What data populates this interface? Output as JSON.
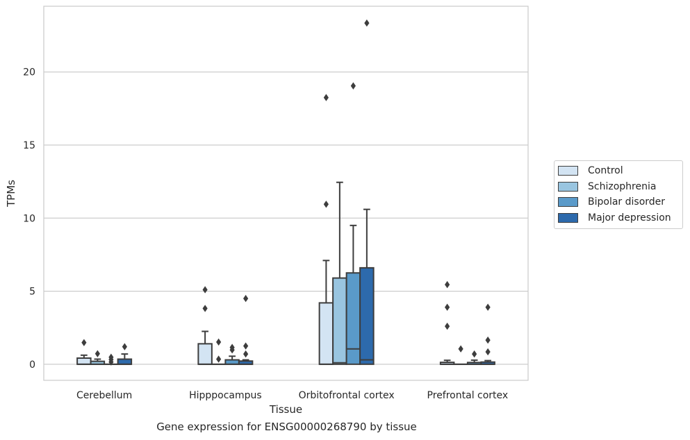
{
  "chart_data": {
    "type": "box",
    "caption": "Gene expression for ENSG00000268790 by tissue",
    "xlabel": "Tissue",
    "ylabel": "TPMs",
    "ylim": [
      -1.1,
      24.5
    ],
    "yticks": [
      0,
      5,
      10,
      15,
      20
    ],
    "grid": "horizontal",
    "legend_position": "right",
    "categories": [
      "Cerebellum",
      "Hipppocampus",
      "Orbitofrontal cortex",
      "Prefrontal cortex"
    ],
    "series": [
      {
        "name": "Control",
        "color": "#d3e4f3",
        "boxes": [
          {
            "q1": 0.0,
            "median": 0.0,
            "q3": 0.42,
            "whisker_low": 0.0,
            "whisker_high": 0.62,
            "outliers": [
              1.48
            ]
          },
          {
            "q1": 0.0,
            "median": 0.0,
            "q3": 1.4,
            "whisker_low": 0.0,
            "whisker_high": 2.25,
            "outliers": [
              3.82,
              5.1
            ]
          },
          {
            "q1": 0.0,
            "median": 0.0,
            "q3": 4.2,
            "whisker_low": 0.0,
            "whisker_high": 7.1,
            "outliers": [
              10.95,
              18.25
            ]
          },
          {
            "q1": 0.0,
            "median": 0.0,
            "q3": 0.13,
            "whisker_low": 0.0,
            "whisker_high": 0.27,
            "outliers": [
              2.6,
              3.9,
              5.45
            ]
          }
        ]
      },
      {
        "name": "Schizophrenia",
        "color": "#99c5e0",
        "boxes": [
          {
            "q1": 0.0,
            "median": 0.0,
            "q3": 0.2,
            "whisker_low": 0.0,
            "whisker_high": 0.35,
            "outliers": [
              0.72
            ]
          },
          {
            "q1": 0.0,
            "median": 0.0,
            "q3": 0.0,
            "whisker_low": 0.0,
            "whisker_high": 0.0,
            "outliers": [
              0.35,
              1.52
            ]
          },
          {
            "q1": 0.0,
            "median": 0.1,
            "q3": 5.9,
            "whisker_low": 0.0,
            "whisker_high": 12.45,
            "outliers": []
          },
          {
            "q1": 0.0,
            "median": 0.0,
            "q3": 0.0,
            "whisker_low": 0.0,
            "whisker_high": 0.0,
            "outliers": [
              1.05
            ]
          }
        ]
      },
      {
        "name": "Bipolar disorder",
        "color": "#5a9ac9",
        "boxes": [
          {
            "q1": 0.0,
            "median": 0.0,
            "q3": 0.0,
            "whisker_low": 0.0,
            "whisker_high": 0.0,
            "outliers": [
              0.15,
              0.32,
              0.48
            ]
          },
          {
            "q1": 0.0,
            "median": 0.0,
            "q3": 0.3,
            "whisker_low": 0.0,
            "whisker_high": 0.55,
            "outliers": [
              0.98,
              1.15
            ]
          },
          {
            "q1": 0.0,
            "median": 1.05,
            "q3": 6.25,
            "whisker_low": 0.0,
            "whisker_high": 9.5,
            "outliers": [
              19.05
            ]
          },
          {
            "q1": 0.0,
            "median": 0.0,
            "q3": 0.12,
            "whisker_low": 0.0,
            "whisker_high": 0.28,
            "outliers": [
              0.7
            ]
          }
        ]
      },
      {
        "name": "Major depression",
        "color": "#2d6aac",
        "boxes": [
          {
            "q1": 0.0,
            "median": 0.0,
            "q3": 0.35,
            "whisker_low": 0.0,
            "whisker_high": 0.7,
            "outliers": [
              1.2
            ]
          },
          {
            "q1": 0.0,
            "median": 0.0,
            "q3": 0.22,
            "whisker_low": 0.0,
            "whisker_high": 0.3,
            "outliers": [
              0.7,
              1.25,
              4.5
            ]
          },
          {
            "q1": 0.0,
            "median": 0.3,
            "q3": 6.6,
            "whisker_low": 0.0,
            "whisker_high": 10.6,
            "outliers": [
              23.35
            ]
          },
          {
            "q1": 0.0,
            "median": 0.0,
            "q3": 0.15,
            "whisker_low": 0.0,
            "whisker_high": 0.25,
            "outliers": [
              0.85,
              1.65,
              3.9
            ]
          }
        ]
      }
    ]
  }
}
